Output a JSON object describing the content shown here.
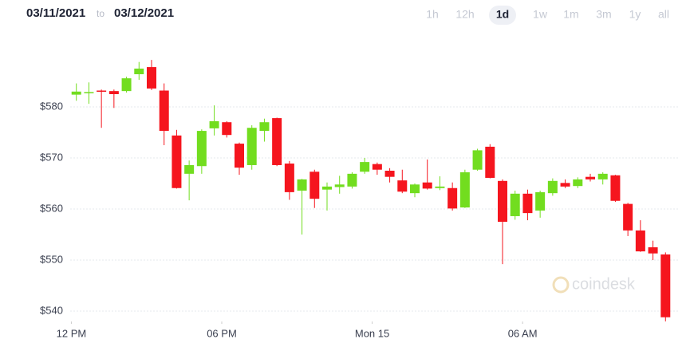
{
  "header": {
    "from_date": "03/11/2021",
    "to_word": "to",
    "to_date": "03/12/2021",
    "ranges": [
      "1h",
      "12h",
      "1d",
      "1w",
      "1m",
      "3m",
      "1y",
      "all"
    ],
    "selected_range": "1d"
  },
  "watermark": "coindesk",
  "chart_data": {
    "type": "candlestick",
    "x": [
      0.2,
      0.7,
      1.2,
      1.7,
      2.2,
      2.7,
      3.2,
      3.7,
      4.2,
      4.7,
      5.2,
      5.7,
      6.2,
      6.7,
      7.2,
      7.7,
      8.2,
      8.7,
      9.2,
      9.7,
      10.2,
      10.7,
      11.2,
      11.7,
      12.2,
      12.7,
      13.2,
      13.7,
      14.2,
      14.7,
      15.2,
      15.7,
      16.2,
      16.7,
      17.2,
      17.7,
      18.2,
      18.7,
      19.2,
      19.7,
      20.2,
      20.7,
      21.2,
      21.7,
      22.2,
      22.7,
      23.2,
      23.7
    ],
    "open": [
      582.4,
      582.7,
      583.2,
      583.1,
      583.1,
      586.4,
      587.8,
      583.2,
      574.4,
      566.9,
      568.4,
      575.8,
      577.0,
      572.8,
      568.6,
      575.3,
      577.8,
      568.9,
      563.6,
      567.3,
      563.8,
      564.3,
      564.4,
      567.3,
      568.8,
      567.5,
      565.6,
      563.1,
      565.2,
      564.1,
      564.1,
      560.3,
      567.7,
      572.2,
      565.5,
      558.6,
      563.0,
      559.7,
      563.1,
      565.1,
      564.5,
      566.3,
      565.8,
      566.6,
      561.0,
      555.8,
      552.5,
      551.1
    ],
    "high": [
      584.6,
      584.8,
      583.4,
      583.4,
      585.9,
      588.8,
      589.2,
      584.6,
      575.5,
      569.5,
      575.6,
      580.3,
      577.2,
      573.0,
      576.4,
      577.7,
      577.9,
      569.4,
      565.9,
      567.7,
      565.2,
      566.5,
      567.2,
      570.0,
      569.1,
      568.0,
      567.7,
      565.0,
      569.7,
      566.4,
      565.2,
      567.7,
      571.8,
      572.7,
      565.8,
      563.6,
      563.8,
      563.6,
      566.0,
      565.8,
      566.2,
      566.9,
      567.2,
      566.7,
      561.2,
      557.8,
      553.8,
      551.5
    ],
    "low": [
      581.2,
      580.6,
      575.9,
      579.8,
      582.8,
      585.3,
      583.3,
      572.5,
      564.0,
      561.7,
      566.9,
      574.4,
      574.0,
      566.7,
      567.7,
      573.2,
      568.4,
      561.8,
      555.0,
      560.2,
      559.7,
      563.0,
      564.0,
      566.9,
      566.7,
      565.2,
      563.1,
      562.3,
      563.8,
      563.7,
      559.7,
      560.2,
      567.5,
      566.0,
      549.2,
      557.9,
      557.8,
      558.3,
      562.6,
      564.1,
      564.1,
      565.4,
      564.8,
      561.4,
      554.7,
      551.6,
      550.0,
      538.0
    ],
    "close": [
      583.0,
      582.9,
      583.0,
      582.5,
      585.6,
      587.5,
      583.6,
      575.3,
      564.1,
      568.6,
      575.3,
      577.2,
      574.5,
      568.1,
      575.9,
      577.0,
      568.6,
      563.3,
      565.8,
      562.0,
      564.4,
      564.8,
      566.9,
      569.2,
      567.7,
      566.3,
      563.4,
      564.8,
      564.0,
      564.4,
      560.1,
      567.2,
      571.5,
      566.1,
      557.5,
      563.0,
      559.2,
      563.3,
      565.5,
      564.4,
      565.8,
      565.8,
      566.9,
      561.6,
      555.8,
      551.7,
      551.3,
      538.8
    ],
    "up_color": "#72dd1f",
    "down_color": "#f5151e",
    "xlim": [
      -0.3,
      24.2
    ],
    "xticks": [
      {
        "value": 0,
        "label": "12 PM"
      },
      {
        "value": 6,
        "label": "06 PM"
      },
      {
        "value": 12,
        "label": "Mon 15"
      },
      {
        "value": 18,
        "label": "06 AM"
      }
    ],
    "ylim": [
      538,
      594
    ],
    "yticks": [
      {
        "value": 540,
        "label": "$540"
      },
      {
        "value": 550,
        "label": "$550"
      },
      {
        "value": 560,
        "label": "$560"
      },
      {
        "value": 570,
        "label": "$570"
      },
      {
        "value": 580,
        "label": "$580"
      }
    ],
    "grid": true
  }
}
